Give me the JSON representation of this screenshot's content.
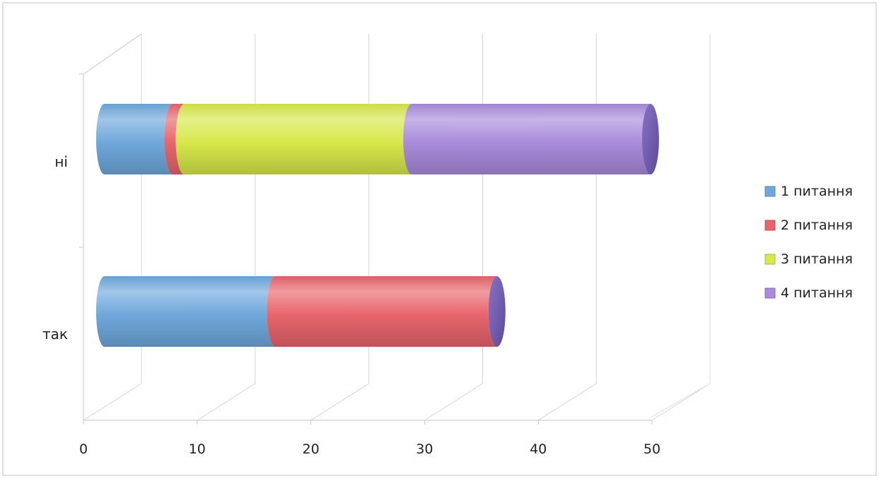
{
  "chart_data": {
    "type": "bar",
    "orientation": "horizontal",
    "stacked": true,
    "style": "3d-cylinder",
    "categories": [
      "так",
      "ні"
    ],
    "series": [
      {
        "name": "1 питання",
        "color": "#6fa8dc",
        "values": [
          15,
          6
        ]
      },
      {
        "name": "2 питання",
        "color": "#e8656c",
        "values": [
          19.5,
          1
        ]
      },
      {
        "name": "3 питання",
        "color": "#d7e84a",
        "values": [
          0,
          20
        ]
      },
      {
        "name": "4 питання",
        "color": "#a98bdb",
        "values": [
          0,
          21
        ]
      }
    ],
    "xlim": [
      0,
      50
    ],
    "xticks": [
      "0",
      "10",
      "20",
      "30",
      "40",
      "50"
    ],
    "grid": true,
    "legend_position": "right"
  }
}
